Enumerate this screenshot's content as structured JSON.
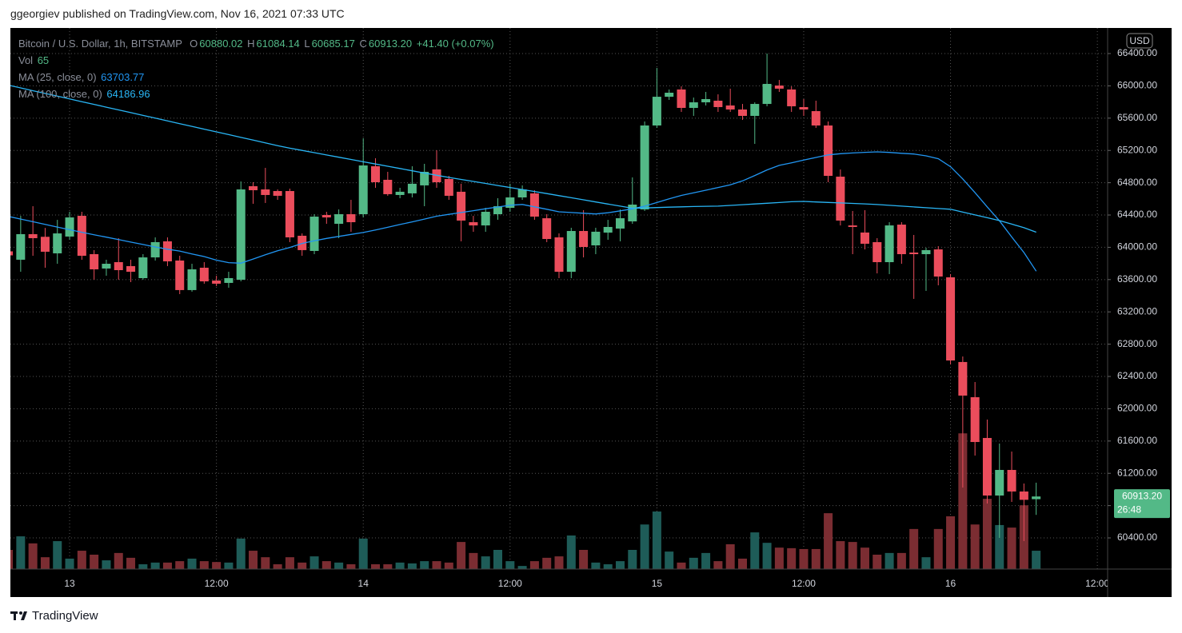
{
  "header": "ggeorgiev published on TradingView.com, Nov 16, 2021 07:33 UTC",
  "footer": "TradingView",
  "chart_data": {
    "type": "candlestick",
    "symbol": "Bitcoin / U.S. Dollar, 1h, BITSTAMP",
    "legend": {
      "open_label": "O",
      "open": "60880.02",
      "high_label": "H",
      "high": "61084.14",
      "low_label": "L",
      "low": "60685.17",
      "close_label": "C",
      "close": "60913.20",
      "change": "+41.40 (+0.07%)",
      "volume_label": "Vol"
    },
    "currency": "USD",
    "countdown": "26:48",
    "up_color": "#53b987",
    "down_color": "#eb4d5c",
    "volume_up_color": "#1e5c58",
    "volume_down_color": "#7b2d32",
    "x": [
      -5,
      -4,
      -3,
      -2,
      -1,
      0,
      1,
      2,
      3,
      4,
      5,
      6,
      7,
      8,
      9,
      10,
      11,
      12,
      13,
      14,
      15,
      16,
      17,
      18,
      19,
      20,
      21,
      22,
      23,
      24,
      25,
      26,
      27,
      28,
      29,
      30,
      31,
      32,
      33,
      34,
      35,
      36,
      37,
      38,
      39,
      40,
      41,
      42,
      43,
      44,
      45,
      46,
      47,
      48,
      49,
      50,
      51,
      52,
      53,
      54,
      55,
      56,
      57,
      58,
      59,
      60,
      61,
      62,
      63,
      64,
      65,
      66,
      67,
      68,
      69,
      70,
      71,
      72,
      73,
      74,
      75,
      76,
      77,
      78,
      79
    ],
    "open": [
      63950,
      63846,
      64163,
      64130,
      63925,
      64133,
      64390,
      63915,
      63737,
      63816,
      63767,
      63618,
      63875,
      64074,
      63836,
      63470,
      63747,
      63588,
      63559,
      63598,
      64757,
      64717,
      64697,
      64697,
      64143,
      63955,
      64400,
      64291,
      64410,
      64410,
      65004,
      64836,
      64648,
      64668,
      64767,
      64965,
      64846,
      64688,
      64311,
      64271,
      64410,
      64489,
      64618,
      64668,
      64360,
      64123,
      63697,
      64202,
      64024,
      64182,
      64232,
      64321,
      64469,
      65509,
      65865,
      65955,
      65727,
      65796,
      65816,
      65757,
      65707,
      65628,
      65776,
      66004,
      65955,
      65737,
      65687,
      65509,
      64875,
      64271,
      64183,
      64064,
      63816,
      64281,
      63935,
      63915,
      63974,
      63628,
      62579,
      62143,
      61638,
      60925,
      61242,
      60975,
      60880.02
    ],
    "high": [
      64000,
      64390,
      64509,
      64240,
      64340,
      64440,
      64440,
      63965,
      63846,
      64113,
      63846,
      63915,
      64123,
      64123,
      63895,
      63796,
      63816,
      63648,
      63697,
      64816,
      64806,
      64984,
      64717,
      64727,
      64172,
      64410,
      64440,
      64469,
      64588,
      65351,
      65103,
      64935,
      64737,
      65004,
      65034,
      65202,
      64885,
      64787,
      64390,
      64489,
      64608,
      64787,
      64767,
      64707,
      64410,
      64172,
      64242,
      64460,
      64242,
      64340,
      64469,
      64866,
      65559,
      66222,
      65955,
      65994,
      65855,
      65925,
      65895,
      65965,
      65776,
      65796,
      66400,
      66073,
      65994,
      65836,
      65816,
      65559,
      64964,
      64450,
      64460,
      64113,
      64311,
      64311,
      64153,
      63994,
      64014,
      63668,
      62648,
      62331,
      61866,
      61569,
      61470,
      61074,
      61084.14
    ],
    "low": [
      63850,
      63697,
      63895,
      63747,
      63796,
      64093,
      63846,
      63598,
      63648,
      63598,
      63569,
      63598,
      63836,
      63767,
      63420,
      63450,
      63549,
      63519,
      63499,
      63578,
      64539,
      64549,
      64588,
      64064,
      63895,
      63915,
      64291,
      64113,
      64192,
      64370,
      64737,
      64638,
      64608,
      64618,
      64509,
      64737,
      64588,
      64074,
      64192,
      64192,
      64341,
      64440,
      64588,
      64341,
      64064,
      63618,
      63618,
      63875,
      63915,
      64093,
      64074,
      64291,
      64450,
      65479,
      65826,
      65677,
      65628,
      65757,
      65677,
      65677,
      65578,
      65281,
      65747,
      65925,
      65677,
      65628,
      65479,
      64806,
      64271,
      63915,
      63974,
      63677,
      63668,
      63796,
      63361,
      63460,
      63529,
      62549,
      61024,
      61420,
      60826,
      60400,
      60846,
      60361,
      60685.17
    ],
    "close": [
      63900,
      64163,
      64113,
      63945,
      64172,
      64370,
      63895,
      63727,
      63796,
      63717,
      63697,
      63875,
      64064,
      63826,
      63470,
      63727,
      63578,
      63549,
      63618,
      64717,
      64707,
      64648,
      64638,
      64123,
      63965,
      64380,
      64370,
      64410,
      64311,
      65014,
      64806,
      64658,
      64688,
      64787,
      64935,
      64806,
      64638,
      64331,
      64271,
      64440,
      64509,
      64618,
      64717,
      64380,
      64103,
      63697,
      64202,
      64004,
      64193,
      64252,
      64360,
      64529,
      65509,
      65865,
      65915,
      65727,
      65796,
      65836,
      65737,
      65707,
      65628,
      65776,
      66024,
      65965,
      65747,
      65707,
      65509,
      64885,
      64331,
      64252,
      64044,
      63816,
      64271,
      63915,
      63915,
      63965,
      63638,
      62598,
      62163,
      61588,
      60925,
      61242,
      60975,
      60871.8,
      60913.2
    ],
    "volume": [
      68,
      116,
      91,
      42,
      99,
      37,
      65,
      51,
      31,
      57,
      40,
      17,
      23,
      23,
      28,
      37,
      28,
      25,
      23,
      108,
      65,
      42,
      17,
      42,
      23,
      45,
      28,
      23,
      17,
      108,
      17,
      17,
      23,
      20,
      28,
      28,
      23,
      96,
      57,
      45,
      68,
      28,
      11,
      28,
      40,
      45,
      119,
      68,
      23,
      17,
      28,
      68,
      158,
      204,
      62,
      23,
      40,
      57,
      28,
      88,
      37,
      130,
      93,
      76,
      74,
      71,
      71,
      198,
      99,
      96,
      76,
      51,
      57,
      57,
      142,
      42,
      142,
      187,
      481,
      158,
      249,
      156,
      147,
      226,
      65
    ],
    "ma": [
      {
        "name": "MA (25, close, 0)",
        "color": "#2196f3",
        "values": [
          64382,
          64350,
          64317,
          64284,
          64251,
          64218,
          64186,
          64156,
          64126,
          64095,
          64065,
          64035,
          64004,
          63976,
          63954,
          63918,
          63885,
          63841,
          63810,
          63803,
          63855,
          63907,
          63958,
          63998,
          64048,
          64080,
          64110,
          64135,
          64160,
          64183,
          64214,
          64248,
          64282,
          64315,
          64350,
          64385,
          64408,
          64431,
          64454,
          64477,
          64499,
          64521,
          64531,
          64501,
          64471,
          64440,
          64431,
          64422,
          64413,
          64428,
          64452,
          64476,
          64510,
          64555,
          64600,
          64643,
          64675,
          64707,
          64741,
          64773,
          64823,
          64889,
          64959,
          65015,
          65047,
          65080,
          65113,
          65145,
          65160,
          65168,
          65176,
          65182,
          65175,
          65165,
          65156,
          65133,
          65097,
          64998,
          64847,
          64676,
          64500,
          64328,
          64128,
          63935,
          63703.77
        ]
      },
      {
        "name": "MA (100, close, 0)",
        "color": "#29b6f6",
        "values": [
          66008,
          65974,
          65940,
          65906,
          65872,
          65838,
          65804,
          65770,
          65736,
          65702,
          65668,
          65634,
          65600,
          65566,
          65532,
          65498,
          65464,
          65430,
          65396,
          65362,
          65328,
          65294,
          65260,
          65228,
          65200,
          65172,
          65144,
          65116,
          65088,
          65060,
          65032,
          65004,
          64976,
          64948,
          64920,
          64892,
          64866,
          64841,
          64816,
          64791,
          64766,
          64741,
          64716,
          64691,
          64666,
          64640,
          64614,
          64588,
          64562,
          64536,
          64510,
          64484,
          64487,
          64492,
          64497,
          64501,
          64505,
          64508,
          64510,
          64519,
          64528,
          64537,
          64546,
          64555,
          64565,
          64568,
          64562,
          64556,
          64550,
          64544,
          64538,
          64530,
          64520,
          64510,
          64500,
          64490,
          64480,
          64471,
          64436,
          64401,
          64366,
          64331,
          64287,
          64243,
          64186.96
        ]
      }
    ],
    "xlim": [
      -4.84,
      84.84
    ],
    "xticks": [
      {
        "value": 0,
        "label": "13"
      },
      {
        "value": 12,
        "label": "12:00"
      },
      {
        "value": 24,
        "label": "14"
      },
      {
        "value": 36,
        "label": "12:00"
      },
      {
        "value": 48,
        "label": "15"
      },
      {
        "value": 60,
        "label": "12:00"
      },
      {
        "value": 72,
        "label": "16"
      },
      {
        "value": 84,
        "label": "12:00"
      }
    ],
    "ylim": [
      60014,
      66717
    ],
    "yticks": [
      {
        "value": 60400,
        "label": "60400.00"
      },
      {
        "value": 60800,
        "label": "60800.00"
      },
      {
        "value": 61200,
        "label": "61200.00"
      },
      {
        "value": 61600,
        "label": "61600.00"
      },
      {
        "value": 62000,
        "label": "62000.00"
      },
      {
        "value": 62400,
        "label": "62400.00"
      },
      {
        "value": 62800,
        "label": "62800.00"
      },
      {
        "value": 63200,
        "label": "63200.00"
      },
      {
        "value": 63600,
        "label": "63600.00"
      },
      {
        "value": 64000,
        "label": "64000.00"
      },
      {
        "value": 64400,
        "label": "64400.00"
      },
      {
        "value": 64800,
        "label": "64800.00"
      },
      {
        "value": 65200,
        "label": "65200.00"
      },
      {
        "value": 65600,
        "label": "65600.00"
      },
      {
        "value": 66000,
        "label": "66000.00"
      },
      {
        "value": 66400,
        "label": "66400.00"
      }
    ],
    "grid": true
  }
}
